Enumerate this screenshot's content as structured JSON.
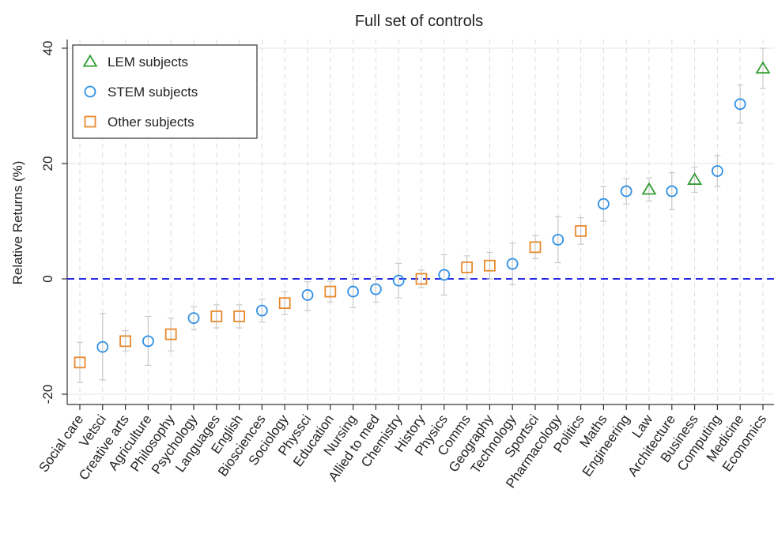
{
  "chart_data": {
    "type": "scatter",
    "title": "Full set of controls",
    "xlabel": "",
    "ylabel": "Relative Returns (%)",
    "ylim": [
      -22,
      42
    ],
    "yticks": [
      -20,
      0,
      20,
      40
    ],
    "grid": true,
    "reference_line": {
      "y": 0,
      "style": "dashed",
      "color": "#2a2ae8"
    },
    "legend": {
      "position": "top-left",
      "entries": [
        {
          "label": "LEM subjects",
          "marker": "triangle",
          "color": "#2f9e2f"
        },
        {
          "label": "STEM subjects",
          "marker": "circle",
          "color": "#2e8fe6"
        },
        {
          "label": "Other subjects",
          "marker": "square",
          "color": "#e8892e"
        }
      ]
    },
    "categories": [
      "Social care",
      "Vetsci",
      "Creative arts",
      "Agriculture",
      "Philosophy",
      "Psychology",
      "Languages",
      "English",
      "Biosciences",
      "Sociology",
      "Physsci",
      "Education",
      "Nursing",
      "Allied to med",
      "Chemistry",
      "History",
      "Physics",
      "Comms",
      "Geography",
      "Technology",
      "Sportsci",
      "Pharmacology",
      "Politics",
      "Maths",
      "Engineering",
      "Law",
      "Architecture",
      "Business",
      "Computing",
      "Medicine",
      "Economics"
    ],
    "points": [
      {
        "subject": "Social care",
        "group": "Other",
        "value": -14.5,
        "ci": [
          -18.0,
          -11.0
        ]
      },
      {
        "subject": "Vetsci",
        "group": "STEM",
        "value": -11.8,
        "ci": [
          -17.5,
          -6.0
        ]
      },
      {
        "subject": "Creative arts",
        "group": "Other",
        "value": -10.8,
        "ci": [
          -12.5,
          -9.0
        ]
      },
      {
        "subject": "Agriculture",
        "group": "STEM",
        "value": -10.8,
        "ci": [
          -15.0,
          -6.5
        ]
      },
      {
        "subject": "Philosophy",
        "group": "Other",
        "value": -9.6,
        "ci": [
          -12.5,
          -6.8
        ]
      },
      {
        "subject": "Psychology",
        "group": "STEM",
        "value": -6.8,
        "ci": [
          -8.8,
          -4.8
        ]
      },
      {
        "subject": "Languages",
        "group": "Other",
        "value": -6.5,
        "ci": [
          -8.5,
          -4.5
        ]
      },
      {
        "subject": "English",
        "group": "Other",
        "value": -6.5,
        "ci": [
          -8.5,
          -4.5
        ]
      },
      {
        "subject": "Biosciences",
        "group": "STEM",
        "value": -5.5,
        "ci": [
          -7.5,
          -3.5
        ]
      },
      {
        "subject": "Sociology",
        "group": "Other",
        "value": -4.2,
        "ci": [
          -6.2,
          -2.2
        ]
      },
      {
        "subject": "Physsci",
        "group": "STEM",
        "value": -2.8,
        "ci": [
          -5.5,
          -0.5
        ]
      },
      {
        "subject": "Education",
        "group": "Other",
        "value": -2.2,
        "ci": [
          -4.0,
          -0.4
        ]
      },
      {
        "subject": "Nursing",
        "group": "STEM",
        "value": -2.2,
        "ci": [
          -5.0,
          0.8
        ]
      },
      {
        "subject": "Allied to med",
        "group": "STEM",
        "value": -1.8,
        "ci": [
          -4.0,
          0.4
        ]
      },
      {
        "subject": "Chemistry",
        "group": "STEM",
        "value": -0.3,
        "ci": [
          -3.3,
          2.7
        ]
      },
      {
        "subject": "History",
        "group": "Other",
        "value": 0.0,
        "ci": [
          -1.5,
          1.5
        ]
      },
      {
        "subject": "Physics",
        "group": "STEM",
        "value": 0.7,
        "ci": [
          -2.8,
          4.2
        ]
      },
      {
        "subject": "Comms",
        "group": "Other",
        "value": 2.0,
        "ci": [
          0.0,
          4.0
        ]
      },
      {
        "subject": "Geography",
        "group": "Other",
        "value": 2.3,
        "ci": [
          0.0,
          4.6
        ]
      },
      {
        "subject": "Technology",
        "group": "STEM",
        "value": 2.6,
        "ci": [
          -1.0,
          6.2
        ]
      },
      {
        "subject": "Sportsci",
        "group": "Other",
        "value": 5.5,
        "ci": [
          3.5,
          7.5
        ]
      },
      {
        "subject": "Pharmacology",
        "group": "STEM",
        "value": 6.8,
        "ci": [
          2.8,
          10.8
        ]
      },
      {
        "subject": "Politics",
        "group": "Other",
        "value": 8.3,
        "ci": [
          6.0,
          10.6
        ]
      },
      {
        "subject": "Maths",
        "group": "STEM",
        "value": 13.0,
        "ci": [
          10.0,
          16.0
        ]
      },
      {
        "subject": "Engineering",
        "group": "STEM",
        "value": 15.2,
        "ci": [
          13.0,
          17.4
        ]
      },
      {
        "subject": "Law",
        "group": "LEM",
        "value": 15.5,
        "ci": [
          13.5,
          17.5
        ]
      },
      {
        "subject": "Architecture",
        "group": "STEM",
        "value": 15.2,
        "ci": [
          12.0,
          18.4
        ]
      },
      {
        "subject": "Business",
        "group": "LEM",
        "value": 17.2,
        "ci": [
          15.0,
          19.4
        ]
      },
      {
        "subject": "Computing",
        "group": "STEM",
        "value": 18.7,
        "ci": [
          16.0,
          21.4
        ]
      },
      {
        "subject": "Medicine",
        "group": "STEM",
        "value": 30.3,
        "ci": [
          27.0,
          33.6
        ]
      },
      {
        "subject": "Economics",
        "group": "LEM",
        "value": 36.5,
        "ci": [
          33.0,
          40.0
        ]
      }
    ]
  }
}
